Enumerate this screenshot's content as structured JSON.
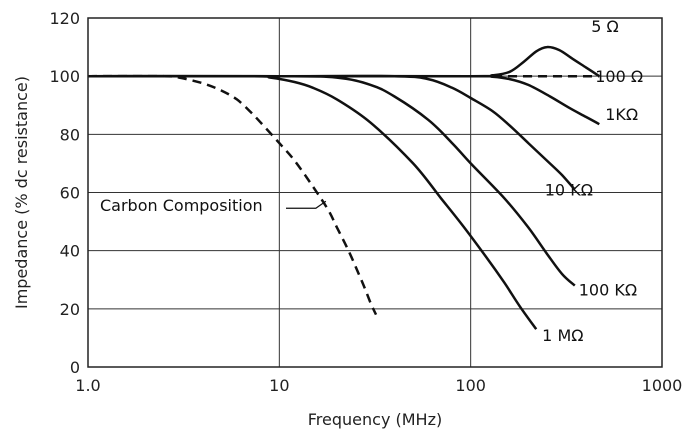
{
  "chart_data": {
    "type": "line",
    "title": "",
    "xlabel": "Frequency (MHz)",
    "ylabel": "Impedance (% dc resistance)",
    "xscale": "log",
    "xlim": [
      1,
      1000
    ],
    "ylim": [
      0,
      120
    ],
    "grid": true,
    "legend": "none",
    "xticks": [
      {
        "value": 1,
        "label": "1.0"
      },
      {
        "value": 10,
        "label": "10"
      },
      {
        "value": 100,
        "label": "100"
      },
      {
        "value": 1000,
        "label": "1000"
      }
    ],
    "yticks": [
      0,
      20,
      40,
      60,
      80,
      100,
      120
    ],
    "series": [
      {
        "name": "5 Ω",
        "style": "solid",
        "label_at": "end-above",
        "points": [
          [
            1,
            100
          ],
          [
            10,
            100
          ],
          [
            100,
            100
          ],
          [
            130,
            100.3
          ],
          [
            160,
            101.5
          ],
          [
            190,
            105
          ],
          [
            220,
            108.5
          ],
          [
            250,
            110
          ],
          [
            290,
            109
          ],
          [
            340,
            106
          ],
          [
            400,
            103
          ],
          [
            470,
            100
          ]
        ]
      },
      {
        "name": "100 Ω",
        "style": "dashed",
        "label_at": "end",
        "points": [
          [
            1,
            100
          ],
          [
            10,
            100
          ],
          [
            100,
            100
          ],
          [
            200,
            100
          ],
          [
            300,
            100
          ],
          [
            470,
            100
          ]
        ]
      },
      {
        "name": "1KΩ",
        "style": "solid",
        "label_at": "end",
        "points": [
          [
            1,
            100
          ],
          [
            10,
            100
          ],
          [
            100,
            100
          ],
          [
            130,
            99.8
          ],
          [
            160,
            99
          ],
          [
            200,
            97
          ],
          [
            260,
            93
          ],
          [
            330,
            89
          ],
          [
            400,
            86
          ],
          [
            470,
            83.5
          ]
        ]
      },
      {
        "name": "10 KΩ",
        "style": "solid",
        "label_at": "end",
        "points": [
          [
            1,
            100
          ],
          [
            10,
            100
          ],
          [
            40,
            100
          ],
          [
            60,
            99
          ],
          [
            80,
            96
          ],
          [
            100,
            92.5
          ],
          [
            130,
            88
          ],
          [
            160,
            83
          ],
          [
            200,
            77
          ],
          [
            250,
            71
          ],
          [
            300,
            66
          ],
          [
            350,
            61
          ]
        ]
      },
      {
        "name": "100 KΩ",
        "style": "solid",
        "label_at": "end",
        "points": [
          [
            1,
            100
          ],
          [
            10,
            100
          ],
          [
            20,
            99.5
          ],
          [
            30,
            97
          ],
          [
            40,
            93
          ],
          [
            60,
            85
          ],
          [
            80,
            77
          ],
          [
            100,
            70
          ],
          [
            150,
            58
          ],
          [
            200,
            48
          ],
          [
            250,
            39
          ],
          [
            300,
            32
          ],
          [
            350,
            28
          ]
        ]
      },
      {
        "name": "1 MΩ",
        "style": "solid",
        "label_at": "end",
        "points": [
          [
            1,
            100
          ],
          [
            7,
            100
          ],
          [
            9,
            99.5
          ],
          [
            12,
            98
          ],
          [
            15,
            96
          ],
          [
            20,
            92
          ],
          [
            30,
            84
          ],
          [
            50,
            70
          ],
          [
            70,
            58
          ],
          [
            90,
            49
          ],
          [
            120,
            38
          ],
          [
            150,
            29
          ],
          [
            180,
            21
          ],
          [
            220,
            13
          ]
        ]
      },
      {
        "name": "Carbon Composition",
        "style": "dashed",
        "label_at": "callout",
        "points": [
          [
            1,
            100
          ],
          [
            2.5,
            100
          ],
          [
            3,
            99.5
          ],
          [
            4,
            97.5
          ],
          [
            5,
            95
          ],
          [
            6,
            92
          ],
          [
            7,
            88
          ],
          [
            8,
            84
          ],
          [
            10,
            77
          ],
          [
            12,
            71
          ],
          [
            15,
            62
          ],
          [
            18,
            54
          ],
          [
            20,
            48
          ],
          [
            23,
            40
          ],
          [
            26,
            32
          ],
          [
            28,
            27
          ],
          [
            30,
            22
          ],
          [
            32,
            18
          ]
        ]
      }
    ],
    "annotations": [
      {
        "text": "Carbon Composition",
        "arrow_to": [
          17.5,
          57
        ]
      }
    ]
  }
}
